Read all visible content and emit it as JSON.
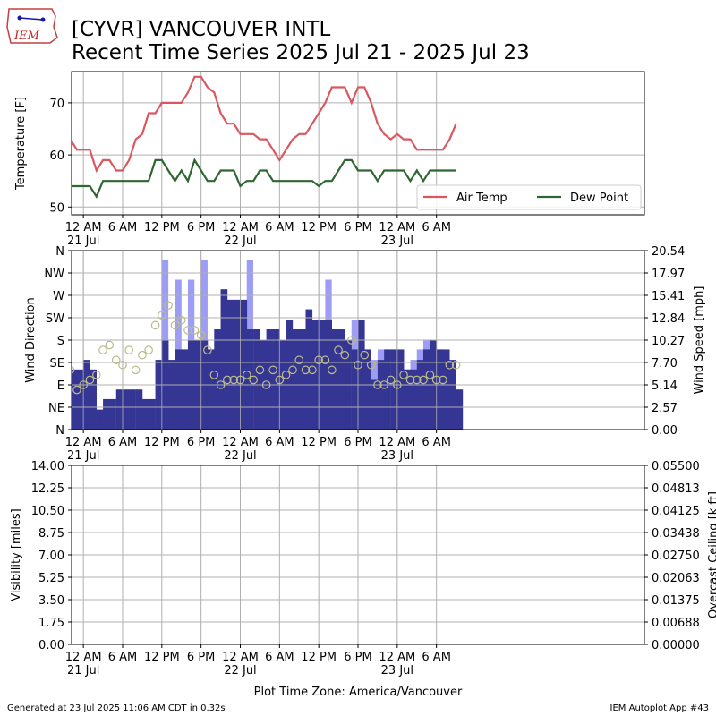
{
  "logo_text": "IEM",
  "title_line1": "[CYVR] VANCOUVER INTL",
  "title_line2": "Recent Time Series 2025 Jul 21 - 2025 Jul 23",
  "footer_left": "Generated at 23 Jul 2025 11:06 AM CDT in 0.32s",
  "footer_right": "IEM Autoplot App #43",
  "colors": {
    "air_temp": "#D9585F",
    "dew_point": "#2F6632",
    "wind_speed": "#353594",
    "wind_gust": "#9D9DF5",
    "wind_dir_marker": "#BBBB88",
    "ceiling_label": "#008000",
    "grid": "#b0b0b0"
  },
  "chart_data": [
    {
      "type": "line",
      "name": "temperature",
      "ylabel": "Temperature [F]",
      "ylim": [
        48.5,
        76
      ],
      "yticks": [
        50,
        60,
        70
      ],
      "xlim": [
        -0.6,
        28.6
      ],
      "xticks": [
        {
          "x": 0,
          "label": "12 AM",
          "sub": "21 Jul"
        },
        {
          "x": 2,
          "label": "6 AM",
          "sub": ""
        },
        {
          "x": 4,
          "label": "12 PM",
          "sub": ""
        },
        {
          "x": 6,
          "label": "6 PM",
          "sub": ""
        },
        {
          "x": 8,
          "label": "12 AM",
          "sub": "22 Jul"
        },
        {
          "x": 10,
          "label": "6 AM",
          "sub": ""
        },
        {
          "x": 12,
          "label": "12 PM",
          "sub": ""
        },
        {
          "x": 14,
          "label": "6 PM",
          "sub": ""
        },
        {
          "x": 16,
          "label": "12 AM",
          "sub": "23 Jul"
        },
        {
          "x": 18,
          "label": "6 AM",
          "sub": ""
        }
      ],
      "grid": true,
      "legend_position": "lower-right",
      "series": [
        {
          "name": "Air Temp",
          "x": [
            -0.67,
            -0.33,
            0,
            0.33,
            0.67,
            1,
            1.33,
            1.67,
            2,
            2.33,
            2.67,
            3,
            3.33,
            3.67,
            4,
            4.33,
            4.67,
            5,
            5.33,
            5.67,
            6,
            6.33,
            6.67,
            7,
            7.33,
            7.67,
            8,
            8.33,
            8.67,
            9,
            9.33,
            9.67,
            10,
            10.33,
            10.67,
            11,
            11.33,
            11.67,
            12,
            12.33,
            12.67,
            13,
            13.33,
            13.67,
            14,
            14.33,
            14.67,
            15,
            15.33,
            15.67,
            16,
            16.33,
            16.67,
            17,
            17.33,
            17.67,
            18,
            18.33,
            18.67,
            19
          ],
          "values": [
            63,
            61,
            61,
            61,
            57,
            59,
            59,
            57,
            57,
            59,
            63,
            64,
            68,
            68,
            70,
            70,
            70,
            70,
            72,
            75,
            75,
            73,
            72,
            68,
            66,
            66,
            64,
            64,
            64,
            63,
            63,
            61,
            59,
            61,
            63,
            64,
            64,
            66,
            68,
            70,
            73,
            73,
            73,
            70,
            73,
            73,
            70,
            66,
            64,
            63,
            64,
            63,
            63,
            61,
            61,
            61,
            61,
            61,
            63,
            66
          ]
        },
        {
          "name": "Dew Point",
          "x": [
            -0.67,
            -0.33,
            0,
            0.33,
            0.67,
            1,
            1.33,
            1.67,
            2,
            2.33,
            2.67,
            3,
            3.33,
            3.67,
            4,
            4.33,
            4.67,
            5,
            5.33,
            5.67,
            6,
            6.33,
            6.67,
            7,
            7.33,
            7.67,
            8,
            8.33,
            8.67,
            9,
            9.33,
            9.67,
            10,
            10.33,
            10.67,
            11,
            11.33,
            11.67,
            12,
            12.33,
            12.67,
            13,
            13.33,
            13.67,
            14,
            14.33,
            14.67,
            15,
            15.33,
            15.67,
            16,
            16.33,
            16.67,
            17,
            17.33,
            17.67,
            18,
            18.33,
            18.67,
            19
          ],
          "values": [
            54,
            54,
            54,
            54,
            52,
            55,
            55,
            55,
            55,
            55,
            55,
            55,
            55,
            59,
            59,
            57,
            55,
            57,
            55,
            59,
            57,
            55,
            55,
            57,
            57,
            57,
            54,
            55,
            55,
            57,
            57,
            55,
            55,
            55,
            55,
            55,
            55,
            55,
            54,
            55,
            55,
            57,
            59,
            59,
            57,
            57,
            57,
            55,
            57,
            57,
            57,
            57,
            55,
            57,
            55,
            57,
            57,
            57,
            57,
            57
          ]
        }
      ]
    },
    {
      "type": "bar",
      "name": "wind",
      "ylabel": "Wind Direction",
      "y2label": "Wind Speed [mph]",
      "ylim": [
        0,
        360
      ],
      "y2lim": [
        0,
        20.54
      ],
      "dir_ticks": [
        "N",
        "NE",
        "E",
        "SE",
        "S",
        "SW",
        "W",
        "NW",
        "N"
      ],
      "speed_ticks": [
        "0.00",
        "2.57",
        "5.14",
        "7.70",
        "10.27",
        "12.84",
        "15.41",
        "17.97",
        "20.54"
      ],
      "grid": true,
      "series": [
        {
          "name": "wind speed",
          "x": [
            -0.67,
            -0.33,
            0,
            0.33,
            0.67,
            1,
            1.33,
            1.67,
            2,
            2.33,
            2.67,
            3,
            3.33,
            3.67,
            4,
            4.33,
            4.67,
            5,
            5.33,
            5.67,
            6,
            6.33,
            6.67,
            7,
            7.33,
            7.67,
            8,
            8.33,
            8.67,
            9,
            9.33,
            9.67,
            10,
            10.33,
            10.67,
            11,
            11.33,
            11.67,
            12,
            12.33,
            12.67,
            13,
            13.33,
            13.67,
            14,
            14.33,
            14.67,
            15,
            15.33,
            15.67,
            16,
            16.33,
            16.67,
            17,
            17.33,
            17.67,
            18,
            18.33,
            18.67,
            19
          ],
          "values": [
            6.9,
            6.9,
            8.0,
            6.9,
            2.3,
            3.5,
            3.5,
            4.6,
            4.6,
            4.6,
            4.6,
            3.5,
            3.5,
            8.0,
            10.3,
            8.0,
            9.2,
            9.2,
            10.3,
            10.3,
            10.3,
            9.2,
            11.5,
            16.1,
            14.9,
            14.9,
            14.9,
            11.5,
            11.5,
            10.3,
            11.5,
            11.5,
            10.3,
            12.6,
            11.5,
            11.5,
            13.8,
            12.6,
            12.6,
            12.6,
            11.5,
            11.5,
            10.3,
            9.2,
            12.6,
            9.2,
            5.7,
            8.0,
            9.2,
            9.2,
            9.2,
            6.9,
            6.9,
            8.0,
            9.2,
            10.3,
            9.2,
            9.2,
            8.0,
            4.6
          ]
        },
        {
          "name": "wind gust",
          "x": [
            3.67,
            4,
            4.33,
            4.67,
            5,
            5.33,
            5.67,
            6,
            6.33,
            6.67,
            7,
            7.33,
            7.67,
            8,
            8.33,
            8.67,
            9,
            9.33,
            9.67,
            10,
            10.33,
            10.67,
            11,
            11.33,
            11.67,
            12,
            12.33,
            12.67,
            13,
            13.33,
            13.67,
            14,
            14.33,
            14.67,
            15,
            15.33,
            15.67,
            16,
            16.33,
            16.67,
            17,
            17.33,
            17.67,
            18,
            18.33,
            18.67,
            19
          ],
          "values": [
            8.0,
            19.5,
            8.0,
            17.2,
            9.2,
            17.2,
            10.3,
            19.5,
            9.2,
            11.5,
            16.1,
            14.9,
            14.9,
            14.9,
            19.5,
            11.5,
            10.3,
            11.5,
            11.5,
            10.3,
            12.6,
            11.5,
            11.5,
            13.8,
            12.6,
            12.6,
            17.2,
            11.5,
            10.3,
            9.2,
            12.6,
            9.2,
            5.7,
            8.0,
            9.2,
            9.2,
            9.2,
            6.9,
            6.9,
            8.0,
            9.2,
            10.3,
            9.2,
            9.2,
            8.0,
            4.6,
            0
          ]
        },
        {
          "name": "wind direction",
          "x": [
            -0.67,
            -0.33,
            0,
            0.33,
            0.67,
            1,
            1.33,
            1.67,
            2,
            2.33,
            2.67,
            3,
            3.33,
            3.67,
            4,
            4.33,
            4.67,
            5,
            5.33,
            5.67,
            6,
            6.33,
            6.67,
            7,
            7.33,
            7.67,
            8,
            8.33,
            8.67,
            9,
            9.33,
            9.67,
            10,
            10.33,
            10.67,
            11,
            11.33,
            11.67,
            12,
            12.33,
            12.67,
            13,
            13.33,
            13.67,
            14,
            14.33,
            14.67,
            15,
            15.33,
            15.67,
            16,
            16.33,
            16.67,
            17,
            17.33,
            17.67,
            18,
            18.33,
            18.67,
            19
          ],
          "values": [
            120,
            80,
            90,
            100,
            110,
            160,
            170,
            140,
            130,
            160,
            120,
            150,
            160,
            210,
            230,
            250,
            210,
            220,
            200,
            200,
            190,
            160,
            110,
            90,
            100,
            100,
            100,
            110,
            100,
            120,
            90,
            120,
            100,
            110,
            120,
            140,
            120,
            120,
            140,
            140,
            120,
            160,
            150,
            180,
            130,
            150,
            130,
            90,
            90,
            100,
            90,
            110,
            100,
            100,
            100,
            110,
            100,
            100,
            130,
            130
          ]
        }
      ]
    },
    {
      "type": "line",
      "name": "visibility",
      "ylabel": "Visibility [miles]",
      "y2label": "Overcast Ceiling [k ft]",
      "ylim": [
        0,
        14
      ],
      "y2lim": [
        0,
        0.055
      ],
      "yticks": [
        "0.00",
        "1.75",
        "3.50",
        "5.25",
        "7.00",
        "8.75",
        "10.50",
        "12.25",
        "14.00"
      ],
      "y2ticks": [
        "0.00000",
        "0.00688",
        "0.01375",
        "0.02063",
        "0.02750",
        "0.03438",
        "0.04125",
        "0.04813",
        "0.05500"
      ],
      "xlabel": "Plot Time Zone: America/Vancouver",
      "grid": true,
      "series": []
    }
  ]
}
